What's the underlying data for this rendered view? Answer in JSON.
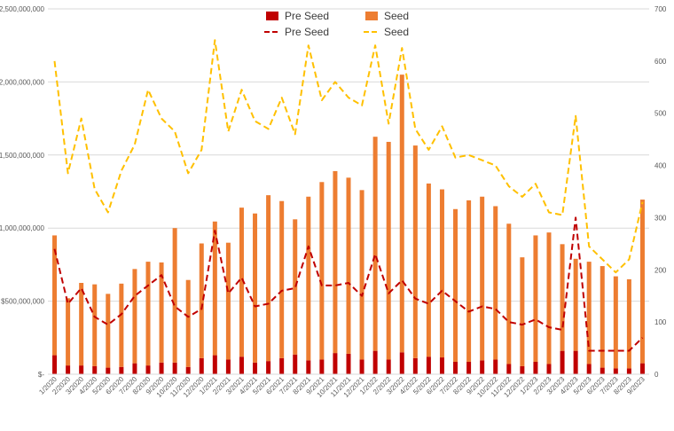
{
  "chart_data": {
    "type": "bar",
    "subtype": "stacked bar with lines on secondary axis",
    "title": "",
    "categories": [
      "1/2020",
      "2/2020",
      "3/2020",
      "4/2020",
      "5/2020",
      "6/2020",
      "7/2020",
      "8/2020",
      "9/2020",
      "10/2020",
      "11/2020",
      "12/2020",
      "1/2021",
      "2/2021",
      "3/2021",
      "4/2021",
      "5/2021",
      "6/2021",
      "7/2021",
      "8/2021",
      "9/2021",
      "10/2021",
      "11/2021",
      "12/2021",
      "1/2022",
      "2/2022",
      "3/2022",
      "4/2022",
      "5/2022",
      "6/2022",
      "7/2022",
      "8/2022",
      "9/2022",
      "10/2022",
      "11/2022",
      "12/2022",
      "1/2023",
      "2/2023",
      "3/2023",
      "4/2023",
      "5/2023",
      "6/2023",
      "7/2023",
      "8/2023",
      "9/2023"
    ],
    "series": [
      {
        "name": "Pre Seed",
        "kind": "bar",
        "axis": "left",
        "color": "#c00000",
        "values": [
          130000000,
          60000000,
          60000000,
          55000000,
          45000000,
          50000000,
          75000000,
          60000000,
          80000000,
          80000000,
          50000000,
          110000000,
          130000000,
          100000000,
          120000000,
          80000000,
          90000000,
          110000000,
          135000000,
          95000000,
          100000000,
          145000000,
          140000000,
          100000000,
          160000000,
          100000000,
          150000000,
          110000000,
          120000000,
          115000000,
          85000000,
          85000000,
          95000000,
          100000000,
          70000000,
          55000000,
          85000000,
          70000000,
          160000000,
          160000000,
          70000000,
          45000000,
          40000000,
          40000000,
          75000000
        ]
      },
      {
        "name": "Seed",
        "kind": "bar",
        "axis": "left",
        "color": "#ed7d31",
        "values": [
          820000000,
          460000000,
          565000000,
          560000000,
          505000000,
          570000000,
          645000000,
          710000000,
          685000000,
          920000000,
          595000000,
          785000000,
          915000000,
          800000000,
          1020000000,
          1020000000,
          1135000000,
          1075000000,
          925000000,
          1120000000,
          1215000000,
          1245000000,
          1205000000,
          1160000000,
          1465000000,
          1490000000,
          1900000000,
          1455000000,
          1185000000,
          1150000000,
          1045000000,
          1105000000,
          1120000000,
          1050000000,
          960000000,
          745000000,
          865000000,
          900000000,
          730000000,
          630000000,
          700000000,
          695000000,
          630000000,
          610000000,
          1120000000
        ]
      },
      {
        "name": "Pre Seed",
        "kind": "line",
        "axis": "right",
        "color": "#c00000",
        "dash": true,
        "values": [
          240,
          135,
          165,
          110,
          95,
          115,
          150,
          170,
          190,
          130,
          110,
          125,
          275,
          155,
          185,
          130,
          135,
          160,
          165,
          245,
          170,
          170,
          175,
          150,
          230,
          155,
          180,
          145,
          135,
          160,
          140,
          120,
          130,
          125,
          100,
          95,
          105,
          90,
          85,
          300,
          45,
          45,
          45,
          45,
          70
        ]
      },
      {
        "name": "Seed",
        "kind": "line",
        "axis": "right",
        "color": "#ffc000",
        "dash": true,
        "values": [
          600,
          385,
          490,
          355,
          310,
          390,
          440,
          545,
          490,
          465,
          385,
          430,
          640,
          465,
          545,
          485,
          470,
          530,
          460,
          630,
          525,
          560,
          530,
          515,
          630,
          480,
          625,
          470,
          430,
          475,
          415,
          420,
          410,
          400,
          360,
          340,
          365,
          310,
          305,
          495,
          245,
          220,
          195,
          220,
          330
        ]
      }
    ],
    "y_left": {
      "min": 0,
      "max": 2500000000,
      "ticks": [
        0,
        500000000,
        1000000000,
        1500000000,
        2000000000,
        2500000000
      ],
      "tick_labels": [
        "$-",
        "$500,000,000",
        "$1,000,000,000",
        "$1,500,000,000",
        "$2,000,000,000",
        "$2,500,000,000"
      ]
    },
    "y_right": {
      "min": 0,
      "max": 700,
      "ticks": [
        0,
        100,
        200,
        300,
        400,
        500,
        600,
        700
      ],
      "tick_labels": [
        "0",
        "100",
        "200",
        "300",
        "400",
        "500",
        "600",
        "700"
      ]
    },
    "grid": true,
    "legend_position": "top"
  }
}
